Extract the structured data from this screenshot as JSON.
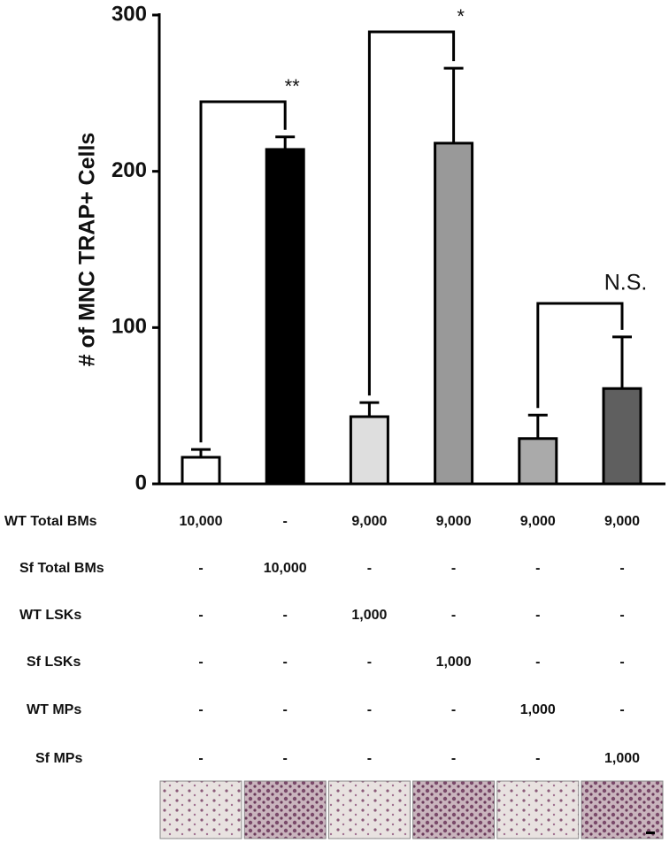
{
  "chart_data": {
    "type": "bar",
    "y_label": "# of MNC TRAP+ Cells",
    "values": [
      17,
      214,
      43,
      218,
      29,
      61
    ],
    "errors": [
      5,
      8,
      9,
      48,
      15,
      33
    ],
    "colors": [
      "#ffffff",
      "#000000",
      "#dedede",
      "#999999",
      "#aaaaaa",
      "#5f5f5f"
    ],
    "ylim": [
      0,
      300
    ],
    "yticks": [
      0,
      100,
      200,
      300
    ],
    "annotations": [
      "**",
      "*",
      "N.S."
    ],
    "table": {
      "rows": [
        {
          "label": "WT Total BMs",
          "cells": [
            "10,000",
            "-",
            "9,000",
            "9,000",
            "9,000",
            "9,000"
          ]
        },
        {
          "label": "Sf Total BMs",
          "cells": [
            "-",
            "10,000",
            "-",
            "-",
            "-",
            "-"
          ]
        },
        {
          "label": "WT LSKs",
          "cells": [
            "-",
            "-",
            "1,000",
            "-",
            "-",
            "-"
          ]
        },
        {
          "label": "Sf LSKs",
          "cells": [
            "-",
            "-",
            "-",
            "1,000",
            "-",
            "-"
          ]
        },
        {
          "label": "WT MPs",
          "cells": [
            "-",
            "-",
            "-",
            "-",
            "1,000",
            "-"
          ]
        },
        {
          "label": "Sf MPs",
          "cells": [
            "-",
            "-",
            "-",
            "-",
            "-",
            "1,000"
          ]
        }
      ]
    }
  }
}
